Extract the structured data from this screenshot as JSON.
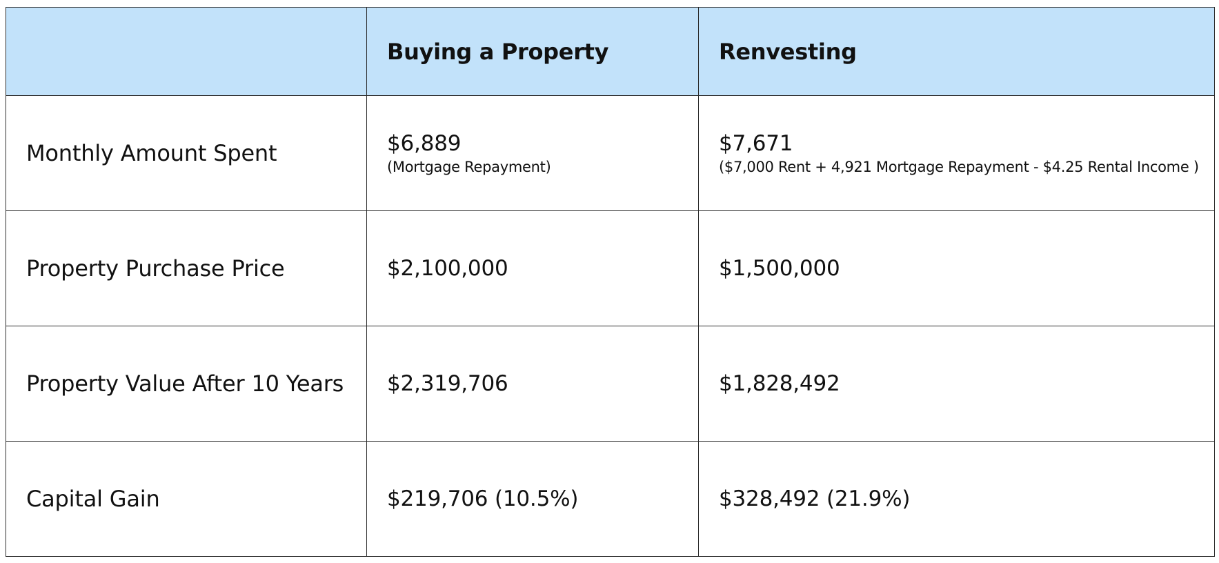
{
  "table": {
    "headers": [
      "",
      "Buying a Property",
      "Renvesting"
    ],
    "rows": [
      {
        "label": "Monthly Amount Spent",
        "buying": {
          "value": "$6,889",
          "note": "(Mortgage Repayment)"
        },
        "reinvesting": {
          "value": "$7,671",
          "note": "($7,000 Rent + 4,921 Mortgage Repayment - $4.25 Rental Income )"
        }
      },
      {
        "label": "Property Purchase Price",
        "buying": {
          "value": "$2,100,000"
        },
        "reinvesting": {
          "value": "$1,500,000"
        }
      },
      {
        "label": "Property Value After 10 Years",
        "buying": {
          "value": "$2,319,706"
        },
        "reinvesting": {
          "value": "$1,828,492"
        }
      },
      {
        "label": "Capital Gain",
        "buying": {
          "value": "$219,706 (10.5%)"
        },
        "reinvesting": {
          "value": "$328,492 (21.9%)"
        }
      }
    ]
  },
  "colors": {
    "header_background": "#c2e2fa",
    "border": "#2b2b2b",
    "text": "#111111"
  }
}
